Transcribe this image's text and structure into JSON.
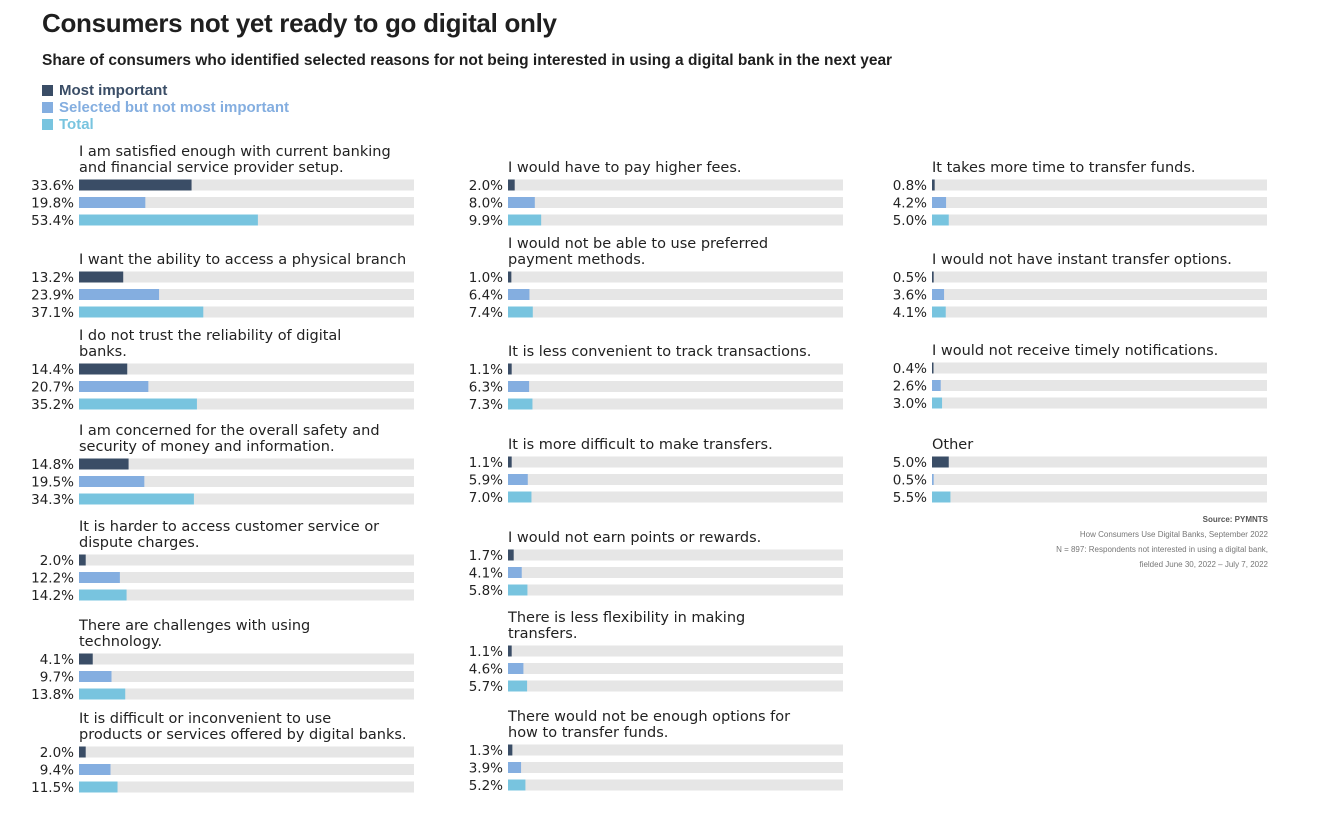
{
  "title": "Consumers not yet ready to go digital only",
  "subtitle": "Share of consumers who identified selected reasons for not being interested in using a digital bank in the next year",
  "legend": [
    {
      "label": "Most important",
      "color": "#3a4d66"
    },
    {
      "label": "Selected but not most important",
      "color": "#84aee0"
    },
    {
      "label": "Total",
      "color": "#78c4df"
    }
  ],
  "source": {
    "label": "Source: PYMNTS",
    "line1": "How Consumers Use Digital Banks, September 2022",
    "line2": "N = 897: Respondents not interested in using a digital bank,",
    "line3": "fielded June 30, 2022 – July 7, 2022"
  },
  "chart_data": {
    "type": "bar",
    "orientation": "horizontal",
    "xlim": [
      0,
      100
    ],
    "track_color": "#e6e6e6",
    "series_names": [
      "Most important",
      "Selected but not most important",
      "Total"
    ],
    "groups": [
      {
        "label": [
          "I am satisfied enough with current banking",
          "and financial service provider setup."
        ],
        "values": [
          33.6,
          19.8,
          53.4
        ],
        "labels": [
          "33.6%",
          "19.8%",
          "53.4%"
        ]
      },
      {
        "label": [
          "I want the ability to access a physical branch"
        ],
        "values": [
          13.2,
          23.9,
          37.1
        ],
        "labels": [
          "13.2%",
          "23.9%",
          "37.1%"
        ]
      },
      {
        "label": [
          "I do not trust the reliability of digital",
          "banks."
        ],
        "values": [
          14.4,
          20.7,
          35.2
        ],
        "labels": [
          "14.4%",
          "20.7%",
          "35.2%"
        ]
      },
      {
        "label": [
          "I am concerned for the overall safety and",
          "security of money and information."
        ],
        "values": [
          14.8,
          19.5,
          34.3
        ],
        "labels": [
          "14.8%",
          "19.5%",
          "34.3%"
        ]
      },
      {
        "label": [
          "It is harder to access customer service or",
          "dispute charges."
        ],
        "values": [
          2.0,
          12.2,
          14.2
        ],
        "labels": [
          "2.0%",
          "12.2%",
          "14.2%"
        ]
      },
      {
        "label": [
          "There are challenges with using",
          "technology."
        ],
        "values": [
          4.1,
          9.7,
          13.8
        ],
        "labels": [
          "4.1%",
          "9.7%",
          "13.8%"
        ]
      },
      {
        "label": [
          "It is difficult or inconvenient to use",
          "products or services offered by digital banks."
        ],
        "values": [
          2.0,
          9.4,
          11.5
        ],
        "labels": [
          "2.0%",
          "9.4%",
          "11.5%"
        ]
      },
      {
        "label": [
          "I would have to pay higher fees."
        ],
        "values": [
          2.0,
          8.0,
          9.9
        ],
        "labels": [
          "2.0%",
          "8.0%",
          "9.9%"
        ]
      },
      {
        "label": [
          "I would not be able to use preferred",
          "payment methods."
        ],
        "values": [
          1.0,
          6.4,
          7.4
        ],
        "labels": [
          "1.0%",
          "6.4%",
          "7.4%"
        ]
      },
      {
        "label": [
          "It is less convenient to track transactions."
        ],
        "values": [
          1.1,
          6.3,
          7.3
        ],
        "labels": [
          "1.1%",
          "6.3%",
          "7.3%"
        ]
      },
      {
        "label": [
          "It is more difficult to make transfers."
        ],
        "values": [
          1.1,
          5.9,
          7.0
        ],
        "labels": [
          "1.1%",
          "5.9%",
          "7.0%"
        ]
      },
      {
        "label": [
          "I would not earn points or rewards."
        ],
        "values": [
          1.7,
          4.1,
          5.8
        ],
        "labels": [
          "1.7%",
          "4.1%",
          "5.8%"
        ]
      },
      {
        "label": [
          "There is less flexibility in making",
          "transfers."
        ],
        "values": [
          1.1,
          4.6,
          5.7
        ],
        "labels": [
          "1.1%",
          "4.6%",
          "5.7%"
        ]
      },
      {
        "label": [
          "There would not be enough options for",
          "how to transfer funds."
        ],
        "values": [
          1.3,
          3.9,
          5.2
        ],
        "labels": [
          "1.3%",
          "3.9%",
          "5.2%"
        ]
      },
      {
        "label": [
          "It takes more time to transfer funds."
        ],
        "values": [
          0.8,
          4.2,
          5.0
        ],
        "labels": [
          "0.8%",
          "4.2%",
          "5.0%"
        ]
      },
      {
        "label": [
          "I would not have instant transfer options."
        ],
        "values": [
          0.5,
          3.6,
          4.1
        ],
        "labels": [
          "0.5%",
          "3.6%",
          "4.1%"
        ]
      },
      {
        "label": [
          "I would not receive timely notifications."
        ],
        "values": [
          0.4,
          2.6,
          3.0
        ],
        "labels": [
          "0.4%",
          "2.6%",
          "3.0%"
        ]
      },
      {
        "label": [
          "Other"
        ],
        "values": [
          5.0,
          0.5,
          5.5
        ],
        "labels": [
          "5.0%",
          "0.5%",
          "5.5%"
        ]
      }
    ]
  }
}
